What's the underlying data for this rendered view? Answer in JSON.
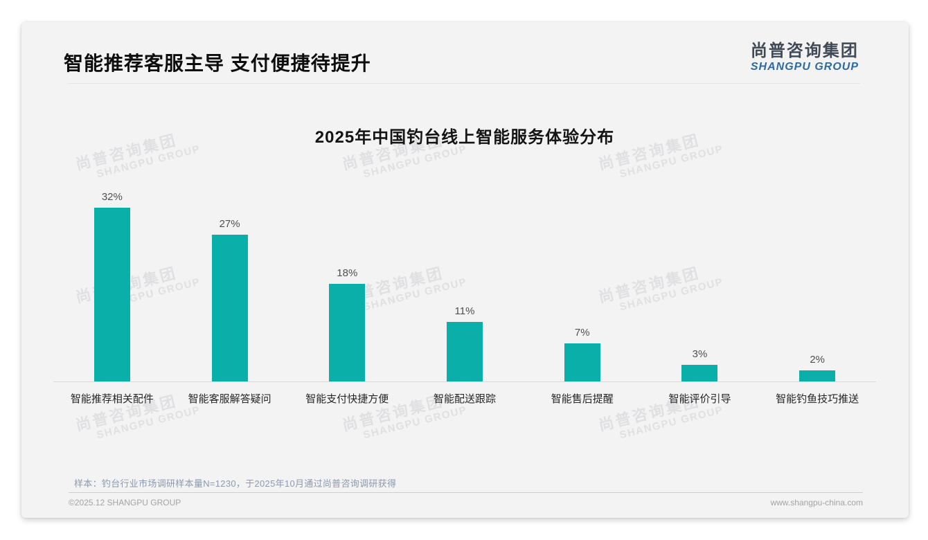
{
  "header": {
    "title": "智能推荐客服主导 支付便捷待提升"
  },
  "logo": {
    "cn": "尚普咨询集团",
    "en": "SHANGPU GROUP",
    "cn_color": "#3f4a55",
    "en_color": "#2c6aa6"
  },
  "watermark": {
    "cn": "尚普咨询集团",
    "en": "SHANGPU GROUP"
  },
  "chart_data": {
    "type": "bar",
    "title": "2025年中国钓台线上智能服务体验分布",
    "categories": [
      "智能推荐相关配件",
      "智能客服解答疑问",
      "智能支付快捷方便",
      "智能配送跟踪",
      "智能售后提醒",
      "智能评价引导",
      "智能钓鱼技巧推送"
    ],
    "values": [
      32,
      27,
      18,
      11,
      7,
      3,
      2
    ],
    "labels": [
      "32%",
      "27%",
      "18%",
      "11%",
      "7%",
      "3%",
      "2%"
    ],
    "unit": "%",
    "bar_color": "#0BAFA9",
    "xlabel": "",
    "ylabel": "",
    "ylim": [
      0,
      35
    ],
    "grid": false,
    "legend": false
  },
  "note": {
    "text": "样本：钓台行业市场调研样本量N=1230，于2025年10月通过尚普咨询调研获得"
  },
  "footer": {
    "copyright": "©2025.12 SHANGPU GROUP",
    "website": "www.shangpu-china.com"
  }
}
